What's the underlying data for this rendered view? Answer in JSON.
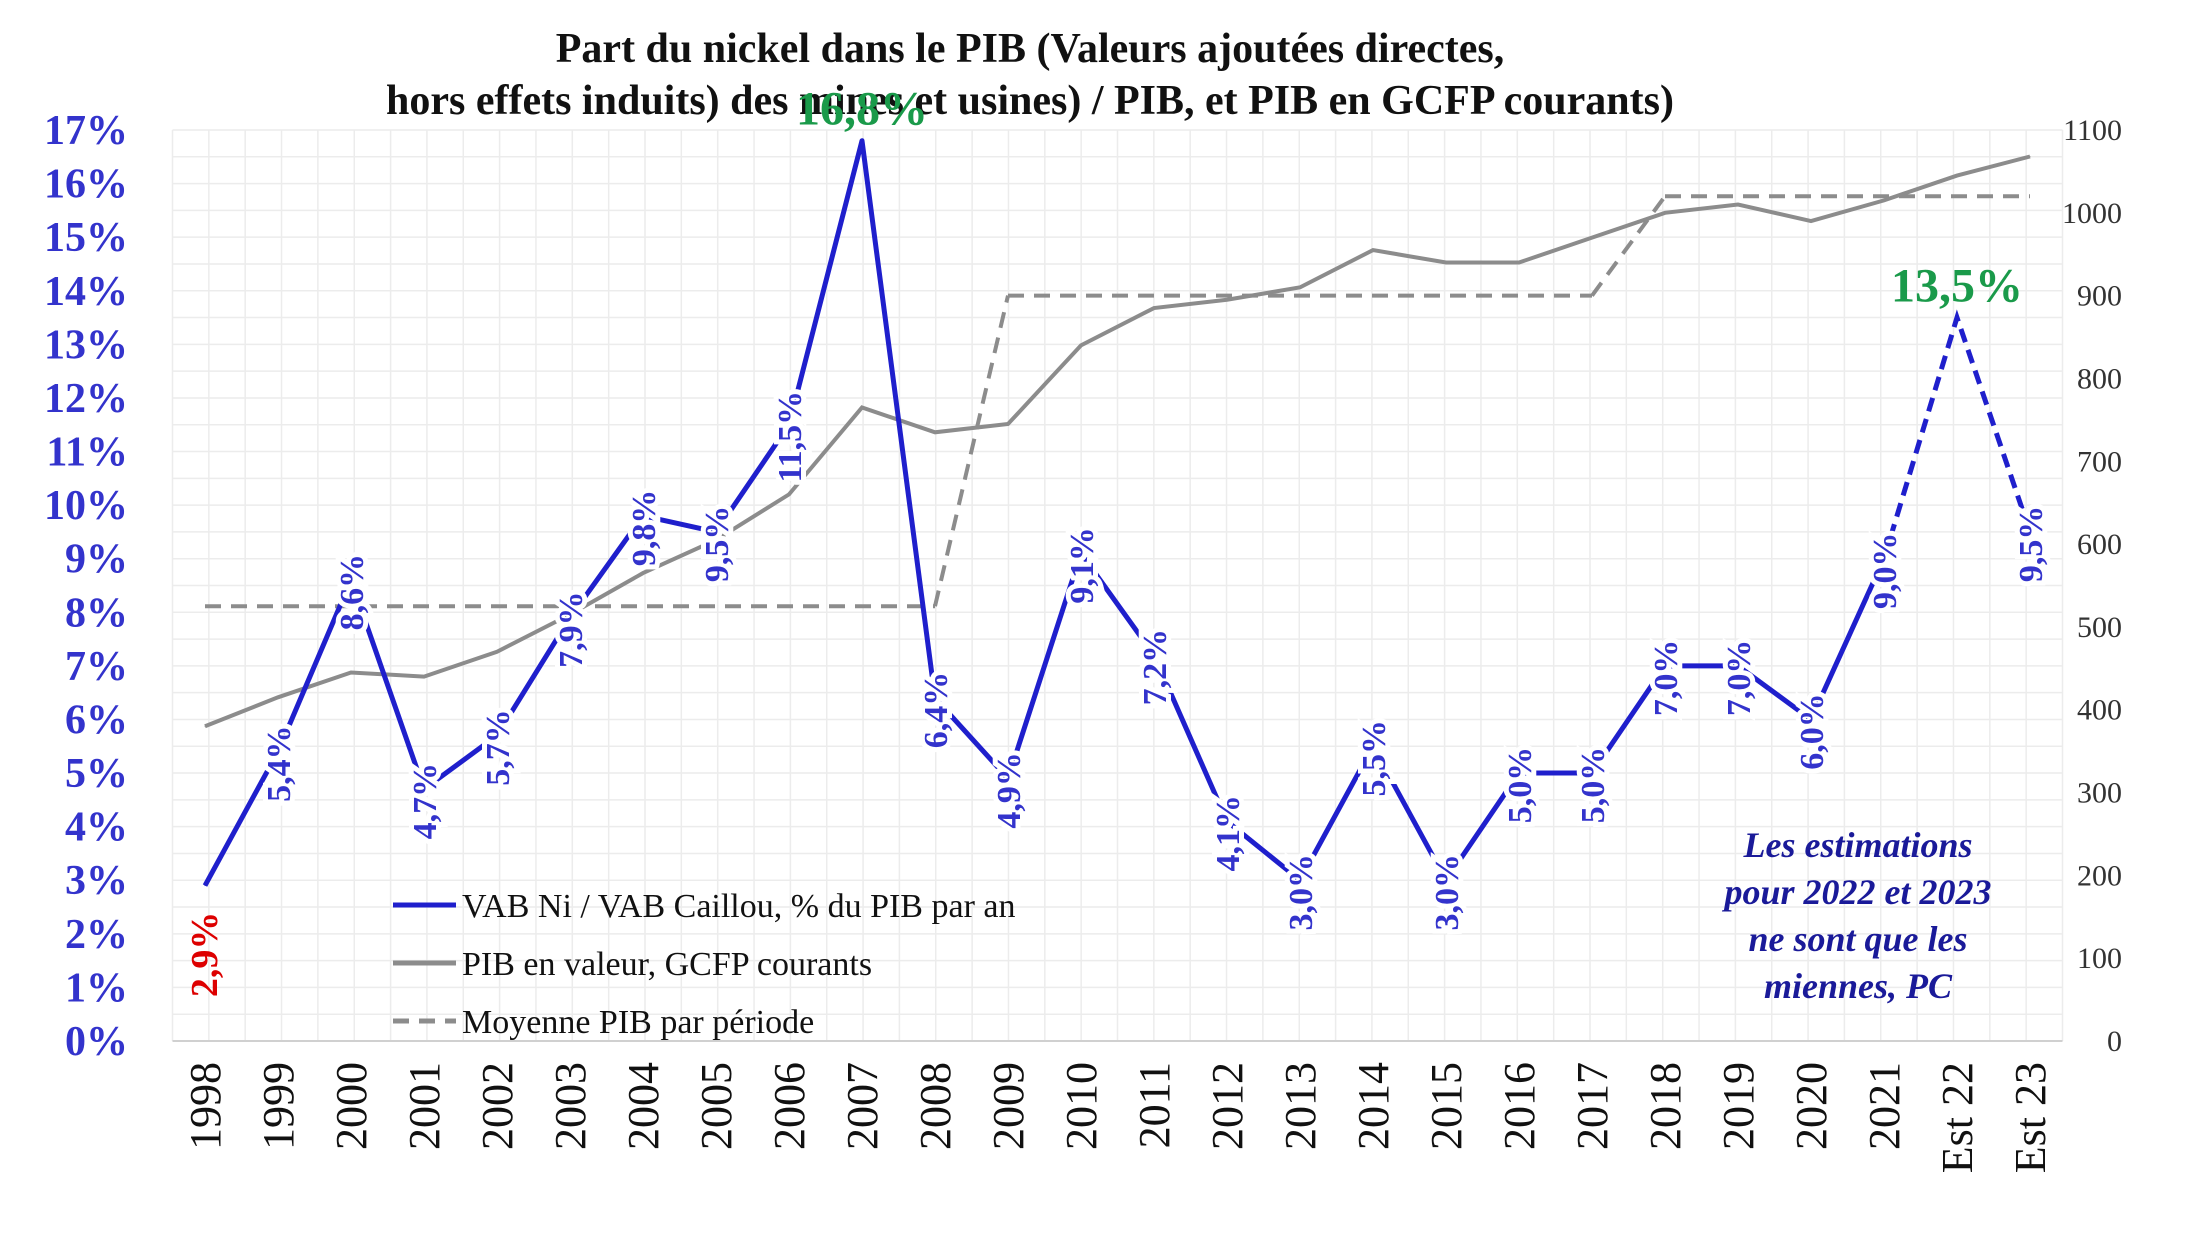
{
  "chart_data": {
    "type": "line",
    "title_line1": "Part du nickel dans le PIB (Valeurs ajoutées directes,",
    "title_line2": "hors effets induits) des mines et usines) / PIB, et PIB en GCFP courants)",
    "categories": [
      "1998",
      "1999",
      "2000",
      "2001",
      "2002",
      "2003",
      "2004",
      "2005",
      "2006",
      "2007",
      "2008",
      "2009",
      "2010",
      "2011",
      "2012",
      "2013",
      "2014",
      "2015",
      "2016",
      "2017",
      "2018",
      "2019",
      "2020",
      "2021",
      "Est 22",
      "Est 23"
    ],
    "y_left": {
      "min": 0,
      "max": 17,
      "step": 1,
      "unit": "%"
    },
    "y_right": {
      "min": 0,
      "max": 1100,
      "step": 100
    },
    "series": [
      {
        "name": "VAB Ni / VAB Caillou, % du PIB par an",
        "axis": "left",
        "color": "#1f1fcc",
        "values": [
          2.9,
          5.4,
          8.6,
          4.7,
          5.7,
          7.9,
          9.8,
          9.5,
          11.5,
          16.8,
          6.4,
          4.9,
          9.1,
          7.2,
          4.1,
          3.0,
          5.5,
          3.0,
          5.0,
          5.0,
          7.0,
          7.0,
          6.0,
          9.0,
          13.5,
          9.5
        ],
        "labels": [
          "2,9%",
          "5,4%",
          "8,6%",
          "4,7%",
          "5,7%",
          "7,9%",
          "9,8%",
          "9,5%",
          "11,5%",
          "16,8%",
          "6,4%",
          "4,9%",
          "9,1%",
          "7,2%",
          "4,1%",
          "3,0%",
          "5,5%",
          "3,0%",
          "5,0%",
          "5,0%",
          "7,0%",
          "7,0%",
          "6,0%",
          "9,0%",
          "13,5%",
          "9,5%"
        ],
        "estimated_from": "Est 22"
      },
      {
        "name": "PIB en valeur, GCFP courants",
        "axis": "right",
        "color": "#8c8c8c",
        "values": [
          380,
          415,
          445,
          440,
          470,
          515,
          565,
          605,
          660,
          765,
          735,
          745,
          840,
          885,
          895,
          910,
          955,
          940,
          940,
          970,
          1000,
          1010,
          990,
          1015,
          1045,
          1068
        ]
      },
      {
        "name": "Moyenne PIB par période",
        "axis": "right",
        "color": "#8c8c8c",
        "dashed": true,
        "segments": [
          {
            "from": "1998",
            "to": "2008",
            "value": 525
          },
          {
            "from": "2009",
            "to": "2017",
            "value": 900
          },
          {
            "from": "2018",
            "to": "Est 23",
            "value": 1020
          }
        ]
      }
    ],
    "yticks_left": [
      "0%",
      "1%",
      "2%",
      "3%",
      "4%",
      "5%",
      "6%",
      "7%",
      "8%",
      "9%",
      "10%",
      "11%",
      "12%",
      "13%",
      "14%",
      "15%",
      "16%",
      "17%"
    ],
    "yticks_right": [
      "0",
      "100",
      "200",
      "300",
      "400",
      "500",
      "600",
      "700",
      "800",
      "900",
      "1000",
      "1100"
    ],
    "legend": {
      "position": "lower-left",
      "items": [
        "VAB Ni / VAB Caillou, % du PIB par an",
        "PIB en valeur, GCFP courants",
        "Moyenne PIB par période"
      ]
    },
    "note": [
      "Les estimations",
      "pour 2022 et 2023",
      "ne sont que les",
      "miennes, PC"
    ],
    "grid": true
  }
}
